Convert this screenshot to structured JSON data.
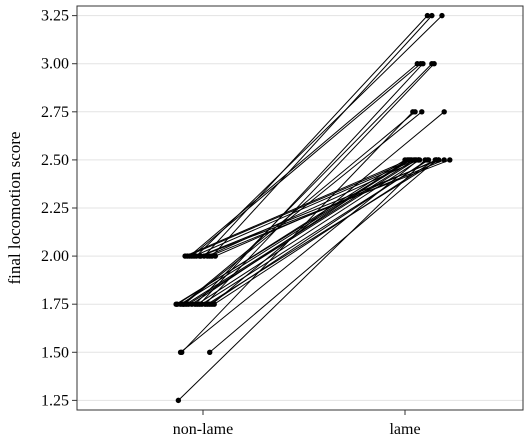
{
  "chart_data": {
    "type": "scatter",
    "title": "",
    "xlabel": "",
    "ylabel": "final locomotion score",
    "categories": [
      "non-lame",
      "lame"
    ],
    "y_ticks": [
      "1.25",
      "1.50",
      "1.75",
      "2.00",
      "2.25",
      "2.50",
      "2.75",
      "3.00",
      "3.25"
    ],
    "ylim": [
      1.2,
      3.3
    ],
    "grid": "horizontal",
    "connected_pairs": true,
    "pairs": [
      {
        "x_jitter": [
          -0.22,
          0.18
        ],
        "y": [
          1.25,
          2.5
        ]
      },
      {
        "x_jitter": [
          -0.2,
          0.12
        ],
        "y": [
          1.5,
          2.5
        ]
      },
      {
        "x_jitter": [
          -0.19,
          0.07
        ],
        "y": [
          1.5,
          2.75
        ]
      },
      {
        "x_jitter": [
          0.06,
          0.28
        ],
        "y": [
          1.5,
          2.5
        ]
      },
      {
        "x_jitter": [
          -0.24,
          0.04
        ],
        "y": [
          1.75,
          2.5
        ]
      },
      {
        "x_jitter": [
          -0.23,
          0.0
        ],
        "y": [
          1.75,
          2.5
        ]
      },
      {
        "x_jitter": [
          -0.2,
          0.05
        ],
        "y": [
          1.75,
          2.5
        ]
      },
      {
        "x_jitter": [
          -0.18,
          0.09
        ],
        "y": [
          1.75,
          2.75
        ]
      },
      {
        "x_jitter": [
          -0.17,
          0.15
        ],
        "y": [
          1.75,
          2.75
        ]
      },
      {
        "x_jitter": [
          -0.15,
          0.08
        ],
        "y": [
          1.75,
          2.5
        ]
      },
      {
        "x_jitter": [
          -0.13,
          0.1
        ],
        "y": [
          1.75,
          2.5
        ]
      },
      {
        "x_jitter": [
          -0.1,
          0.02
        ],
        "y": [
          1.75,
          2.5
        ]
      },
      {
        "x_jitter": [
          -0.07,
          0.24
        ],
        "y": [
          1.75,
          3.0
        ]
      },
      {
        "x_jitter": [
          -0.05,
          0.13
        ],
        "y": [
          1.75,
          2.5
        ]
      },
      {
        "x_jitter": [
          -0.03,
          0.16
        ],
        "y": [
          1.75,
          3.0
        ]
      },
      {
        "x_jitter": [
          -0.01,
          0.21
        ],
        "y": [
          1.75,
          2.5
        ]
      },
      {
        "x_jitter": [
          0.02,
          0.26
        ],
        "y": [
          1.75,
          3.0
        ]
      },
      {
        "x_jitter": [
          0.04,
          0.3
        ],
        "y": [
          1.75,
          2.5
        ]
      },
      {
        "x_jitter": [
          0.06,
          0.2
        ],
        "y": [
          1.75,
          2.5
        ]
      },
      {
        "x_jitter": [
          0.08,
          0.35
        ],
        "y": [
          1.75,
          2.75
        ]
      },
      {
        "x_jitter": [
          0.1,
          0.27
        ],
        "y": [
          1.75,
          2.5
        ]
      },
      {
        "x_jitter": [
          -0.16,
          0.03
        ],
        "y": [
          2.0,
          2.5
        ]
      },
      {
        "x_jitter": [
          -0.14,
          0.06
        ],
        "y": [
          2.0,
          2.5
        ]
      },
      {
        "x_jitter": [
          -0.12,
          0.11
        ],
        "y": [
          2.0,
          3.0
        ]
      },
      {
        "x_jitter": [
          -0.1,
          0.14
        ],
        "y": [
          2.0,
          3.0
        ]
      },
      {
        "x_jitter": [
          -0.08,
          0.09
        ],
        "y": [
          2.0,
          2.5
        ]
      },
      {
        "x_jitter": [
          -0.06,
          0.33
        ],
        "y": [
          2.0,
          3.25
        ]
      },
      {
        "x_jitter": [
          -0.03,
          0.3
        ],
        "y": [
          2.0,
          2.5
        ]
      },
      {
        "x_jitter": [
          -0.02,
          0.4
        ],
        "y": [
          2.0,
          2.5
        ]
      },
      {
        "x_jitter": [
          0.01,
          0.2
        ],
        "y": [
          2.0,
          3.25
        ]
      },
      {
        "x_jitter": [
          0.04,
          0.12
        ],
        "y": [
          2.0,
          2.5
        ]
      },
      {
        "x_jitter": [
          0.06,
          0.35
        ],
        "y": [
          2.0,
          2.5
        ]
      },
      {
        "x_jitter": [
          0.08,
          0.24
        ],
        "y": [
          2.0,
          3.25
        ]
      },
      {
        "x_jitter": [
          0.11,
          0.28
        ],
        "y": [
          2.0,
          2.5
        ]
      }
    ]
  }
}
